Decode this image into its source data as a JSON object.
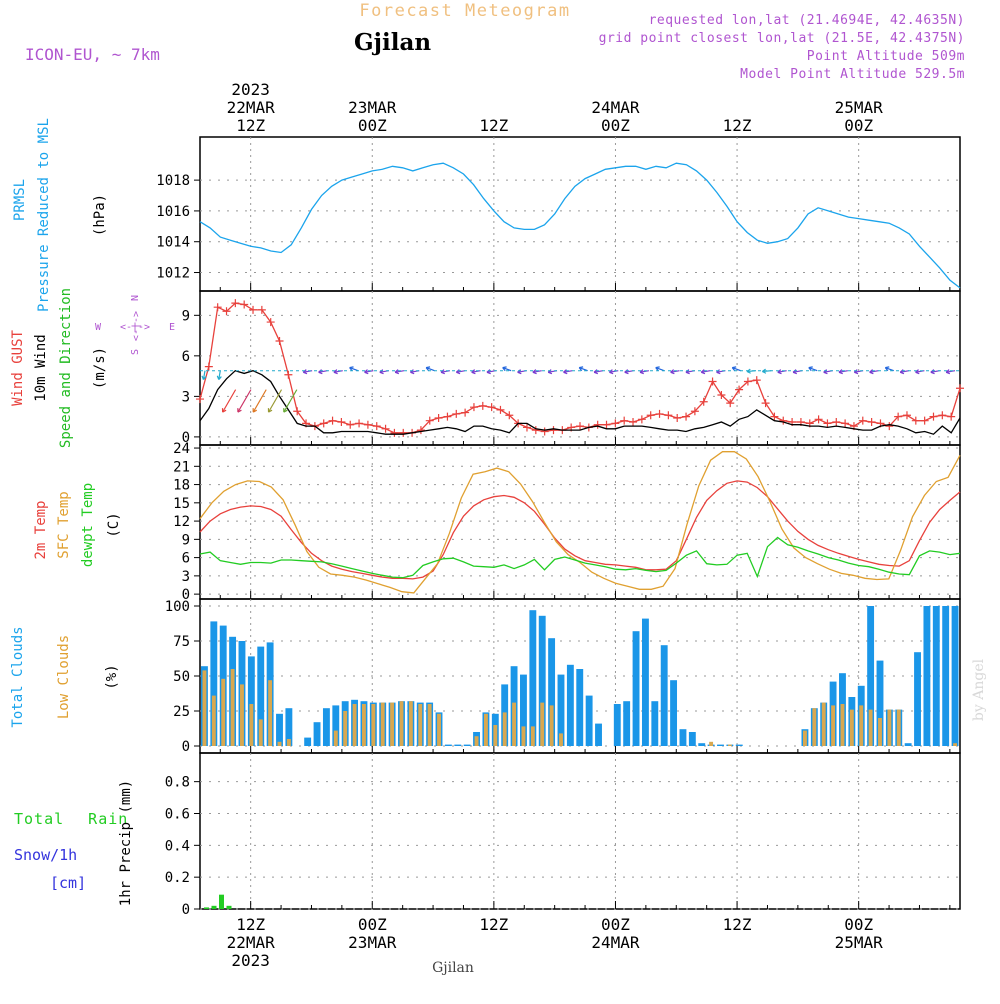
{
  "header": {
    "title": "Forecast Meteogram",
    "location": "Gjilan",
    "model": "ICON-EU, ~ 7km",
    "requested": "requested lon,lat (21.4694E, 42.4635N)",
    "grid": "grid point closest lon,lat (21.5E, 42.4375N)",
    "altitude": "Point Altitude 509m",
    "model_altitude": "Model Point Altitude 529.5m"
  },
  "footer": {
    "location": "Gjilan",
    "credit": "by Angel"
  },
  "compass": {
    "n": "N",
    "s": "S",
    "w": "W",
    "e": "E",
    "arrow": "<-|->"
  },
  "colors": {
    "pressure": "#1ba4ec",
    "gust": "#e8413c",
    "wind": "#000000",
    "direction": "#22bb22",
    "temp2m": "#e8413c",
    "sfc": "#e0a030",
    "dewpt": "#22cc22",
    "clouds_total": "#1a96e8",
    "clouds_low": "#d8a850",
    "rain": "#22cc22",
    "snow": "#3333dd",
    "header_purple": "#b055d0",
    "title": "#f0c080"
  },
  "chart_data": [
    {
      "type": "line",
      "title": "PRMSL Pressure Reduced to MSL",
      "ylabel_lines": [
        "PRMSL",
        "Pressure Reduced to MSL"
      ],
      "unit": "(hPa)",
      "ylim": [
        1010.8,
        1020.8
      ],
      "yticks": [
        1012,
        1014,
        1016,
        1018
      ],
      "x_hours_step": 3,
      "series": [
        {
          "name": "Pressure",
          "values": [
            1015.3,
            1014.9,
            1014.3,
            1014.1,
            1013.9,
            1013.7,
            1013.6,
            1013.4,
            1013.3,
            1013.8,
            1014.9,
            1016.1,
            1017.0,
            1017.6,
            1018.0,
            1018.2,
            1018.4,
            1018.6,
            1018.7,
            1018.9,
            1018.8,
            1018.6,
            1018.8,
            1019.0,
            1019.1,
            1018.8,
            1018.4,
            1017.7,
            1016.8,
            1016.0,
            1015.3,
            1014.9,
            1014.8,
            1014.8,
            1015.1,
            1015.8,
            1016.8,
            1017.6,
            1018.1,
            1018.4,
            1018.7,
            1018.8,
            1018.9,
            1018.9,
            1018.7,
            1018.9,
            1018.8,
            1019.1,
            1019.0,
            1018.6,
            1018.0,
            1017.2,
            1016.3,
            1015.3,
            1014.6,
            1014.1,
            1013.9,
            1014.0,
            1014.2,
            1014.9,
            1015.8,
            1016.2,
            1016.0,
            1015.8,
            1015.6,
            1015.5,
            1015.4,
            1015.3,
            1015.2,
            1014.9,
            1014.5,
            1013.7,
            1013.0,
            1012.3,
            1011.5,
            1011.0
          ]
        }
      ]
    },
    {
      "type": "line",
      "title": "Wind GUST 10m Wind Speed and Direction",
      "ylabel_lines": [
        "Wind GUST",
        "10m Wind",
        "Speed and Direction"
      ],
      "unit": "(m/s)",
      "ylim": [
        -0.6,
        10.8
      ],
      "yticks": [
        0,
        3,
        6,
        9
      ],
      "x_hours_step": 3,
      "series": [
        {
          "name": "Wind GUST",
          "values": [
            2.8,
            5.2,
            9.6,
            9.3,
            9.9,
            9.8,
            9.4,
            9.4,
            8.5,
            7.1,
            4.6,
            1.9,
            1.0,
            0.8,
            1.0,
            1.2,
            1.1,
            0.9,
            1.0,
            0.9,
            0.8,
            0.6,
            0.3,
            0.3,
            0.3,
            0.5,
            1.2,
            1.4,
            1.5,
            1.7,
            1.8,
            2.2,
            2.3,
            2.2,
            2.0,
            1.6,
            1.0,
            0.7,
            0.5,
            0.4,
            0.5,
            0.5,
            0.7,
            0.8,
            0.7,
            0.9,
            0.9,
            1.0,
            1.2,
            1.1,
            1.3,
            1.6,
            1.7,
            1.6,
            1.4,
            1.5,
            1.9,
            2.6,
            4.1,
            3.1,
            2.5,
            3.5,
            4.1,
            4.2,
            2.5,
            1.5,
            1.2,
            1.1,
            1.1,
            1.0,
            1.3,
            1.0,
            1.1,
            1.0,
            0.8,
            1.2,
            1.1,
            1.0,
            0.8,
            1.5,
            1.6,
            1.2,
            1.2,
            1.5,
            1.6,
            1.5,
            3.6
          ]
        },
        {
          "name": "10m Wind",
          "values": [
            1.2,
            2.1,
            3.5,
            4.3,
            4.9,
            4.7,
            4.9,
            4.6,
            4.1,
            3.0,
            2.0,
            1.0,
            0.8,
            0.8,
            0.3,
            0.3,
            0.4,
            0.4,
            0.4,
            0.4,
            0.3,
            0.2,
            0.2,
            0.2,
            0.3,
            0.4,
            0.5,
            0.6,
            0.7,
            0.6,
            0.4,
            0.8,
            0.8,
            0.6,
            0.5,
            0.3,
            1.0,
            1.0,
            0.6,
            0.5,
            0.6,
            0.5,
            0.5,
            0.5,
            0.7,
            0.8,
            0.6,
            0.6,
            0.8,
            0.8,
            0.8,
            0.7,
            0.6,
            0.5,
            0.5,
            0.4,
            0.6,
            0.7,
            0.9,
            1.1,
            0.8,
            1.3,
            1.5,
            2.0,
            1.6,
            1.2,
            1.1,
            0.9,
            0.9,
            0.8,
            0.8,
            0.7,
            0.8,
            0.7,
            0.6,
            0.5,
            0.5,
            0.8,
            0.9,
            0.8,
            0.6,
            0.3,
            0.4,
            0.2,
            0.8,
            0.3,
            1.4
          ]
        }
      ]
    },
    {
      "type": "line",
      "title": "2m Temp SFC Temp dewpt Temp",
      "ylabel_lines": [
        "2m Temp",
        "SFC Temp",
        "dewpt Temp"
      ],
      "unit": "(C)",
      "ylim": [
        -0.8,
        24.5
      ],
      "yticks": [
        0,
        3,
        6,
        9,
        12,
        15,
        18,
        21,
        24
      ],
      "x_hours_step": 3,
      "series": [
        {
          "name": "2m Temp",
          "values": [
            10.2,
            12.0,
            13.2,
            13.9,
            14.3,
            14.5,
            14.4,
            13.9,
            12.8,
            10.6,
            8.5,
            6.7,
            5.5,
            4.6,
            4.1,
            3.7,
            3.4,
            3.1,
            2.8,
            2.6,
            2.6,
            2.5,
            2.8,
            3.8,
            6.5,
            10.1,
            12.8,
            14.5,
            15.5,
            16.0,
            16.2,
            15.9,
            15.0,
            13.6,
            11.5,
            9.2,
            7.4,
            6.3,
            5.5,
            5.2,
            4.9,
            4.8,
            4.6,
            4.4,
            4.0,
            4.0,
            4.1,
            5.5,
            9.0,
            12.6,
            15.4,
            17.0,
            18.2,
            18.6,
            18.4,
            17.5,
            16.0,
            14.0,
            12.0,
            10.3,
            9.0,
            8.0,
            7.3,
            6.7,
            6.2,
            5.7,
            5.3,
            4.9,
            4.7,
            4.6,
            5.5,
            8.8,
            11.8,
            13.9,
            15.4,
            16.8
          ]
        },
        {
          "name": "SFC Temp",
          "values": [
            12.4,
            15.0,
            16.9,
            18.0,
            18.6,
            18.5,
            17.6,
            15.5,
            11.4,
            7.0,
            4.4,
            3.3,
            3.1,
            2.8,
            2.3,
            1.7,
            1.1,
            0.4,
            0.2,
            2.6,
            5.0,
            10.0,
            15.8,
            19.7,
            20.1,
            20.7,
            20.1,
            18.1,
            15.2,
            11.8,
            8.6,
            6.5,
            5.2,
            3.6,
            2.6,
            1.8,
            1.3,
            0.8,
            0.8,
            1.3,
            4.2,
            11.4,
            17.8,
            22.0,
            23.4,
            23.4,
            22.2,
            19.3,
            15.2,
            10.7,
            7.6,
            6.0,
            5.0,
            4.1,
            3.4,
            3.1,
            2.6,
            2.4,
            2.5,
            7.2,
            12.7,
            16.2,
            18.5,
            19.2,
            22.8
          ]
        },
        {
          "name": "dewpt Temp",
          "values": [
            6.6,
            6.9,
            5.5,
            5.2,
            4.9,
            5.2,
            5.2,
            5.1,
            5.6,
            5.6,
            5.5,
            5.4,
            5.3,
            5.0,
            4.6,
            4.2,
            3.8,
            3.4,
            3.1,
            2.8,
            2.7,
            3.1,
            4.7,
            5.3,
            5.8,
            5.9,
            5.3,
            4.6,
            4.5,
            4.4,
            4.8,
            4.2,
            4.8,
            5.7,
            4.0,
            5.7,
            6.1,
            5.6,
            5.1,
            4.8,
            4.5,
            4.1,
            4.0,
            4.2,
            3.9,
            3.7,
            3.9,
            5.1,
            6.4,
            7.1,
            5.0,
            4.8,
            4.9,
            6.4,
            6.7,
            2.9,
            7.8,
            9.3,
            8.1,
            7.7,
            7.1,
            6.6,
            6.0,
            5.6,
            5.1,
            4.7,
            4.5,
            4.1,
            3.6,
            3.3,
            3.2,
            6.3,
            7.1,
            6.9,
            6.5,
            6.7
          ]
        }
      ]
    },
    {
      "type": "bar",
      "title": "Total Clouds Low Clouds",
      "ylabel_lines": [
        "Total Clouds",
        "Low Clouds"
      ],
      "unit": "(%)",
      "ylim": [
        -5,
        105
      ],
      "yticks": [
        0,
        25,
        50,
        75,
        100
      ],
      "series": [
        {
          "name": "Total Clouds",
          "values": [
            57,
            89,
            86,
            78,
            75,
            64,
            71,
            74,
            23,
            27,
            0,
            6,
            17,
            27,
            29,
            32,
            33,
            32,
            31,
            31,
            31,
            32,
            32,
            31,
            31,
            24,
            1,
            1,
            1,
            10,
            24,
            23,
            44,
            57,
            51,
            97,
            93,
            77,
            51,
            58,
            55,
            36,
            16,
            0,
            30,
            32,
            82,
            91,
            32,
            72,
            47,
            12,
            10,
            2,
            1,
            1,
            1,
            1,
            0,
            0,
            0,
            0,
            0,
            0,
            12,
            27,
            31,
            46,
            52,
            35,
            43,
            100,
            61,
            26,
            26,
            2,
            67,
            100,
            100,
            100,
            100
          ]
        },
        {
          "name": "Low Clouds",
          "values": [
            54,
            36,
            48,
            55,
            44,
            30,
            19,
            47,
            3,
            5,
            0,
            0,
            0,
            0,
            11,
            25,
            30,
            30,
            30,
            31,
            31,
            32,
            32,
            30,
            30,
            23,
            0,
            0,
            0,
            7,
            23,
            15,
            24,
            31,
            14,
            14,
            31,
            29,
            9,
            0,
            0,
            0,
            0,
            0,
            0,
            0,
            0,
            0,
            0,
            0,
            0,
            0,
            0,
            0,
            3,
            0,
            1,
            0,
            0,
            0,
            0,
            0,
            0,
            0,
            11,
            27,
            31,
            29,
            30,
            26,
            29,
            26,
            20,
            26,
            26,
            0,
            0,
            0,
            0,
            0,
            2
          ]
        }
      ]
    },
    {
      "type": "bar",
      "title": "1hr Precip (mm)",
      "ylabel_lines": [
        "1hr Precip (mm)"
      ],
      "left_labels": [
        "Total Rain",
        "Snow/1h",
        "[cm]"
      ],
      "ylim": [
        0,
        0.98
      ],
      "yticks": [
        0,
        0.2,
        0.4,
        0.6,
        0.8
      ],
      "yticklabels": [
        "0",
        "0.2",
        "0.4",
        "0.6",
        "0.8"
      ],
      "series": [
        {
          "name": "Total Rain",
          "values": [
            0.01,
            0.02,
            0.09,
            0.02,
            0.0,
            0.0
          ]
        }
      ]
    }
  ],
  "time_axis": {
    "top": [
      {
        "h": 12,
        "lines": [
          "2023",
          "22MAR",
          "12Z"
        ]
      },
      {
        "h": 24,
        "lines": [
          "23MAR",
          "00Z"
        ]
      },
      {
        "h": 36,
        "lines": [
          "12Z"
        ]
      },
      {
        "h": 48,
        "lines": [
          "24MAR",
          "00Z"
        ]
      },
      {
        "h": 60,
        "lines": [
          "12Z"
        ]
      },
      {
        "h": 72,
        "lines": [
          "25MAR",
          "00Z"
        ]
      }
    ],
    "bottom": [
      {
        "h": 12,
        "lines": [
          "12Z",
          "22MAR",
          "2023"
        ]
      },
      {
        "h": 24,
        "lines": [
          "00Z",
          "23MAR"
        ]
      },
      {
        "h": 36,
        "lines": [
          "12Z"
        ]
      },
      {
        "h": 48,
        "lines": [
          "00Z",
          "24MAR"
        ]
      },
      {
        "h": 60,
        "lines": [
          "12Z"
        ]
      },
      {
        "h": 72,
        "lines": [
          "00Z",
          "25MAR"
        ]
      }
    ]
  }
}
